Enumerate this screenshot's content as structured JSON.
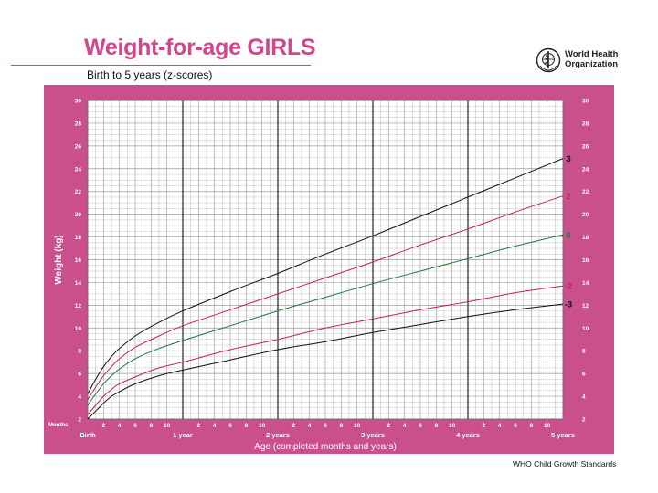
{
  "page": {
    "title": "Weight-for-age GIRLS",
    "subtitle": "Birth to 5 years (z-scores)",
    "organization_line1": "World Health",
    "organization_line2": "Organization",
    "footer": "WHO Child Growth Standards",
    "icons": {
      "logo": "who-emblem-icon"
    }
  },
  "colors": {
    "frame": "#c9508d",
    "title": "#d2468d",
    "z_sd3": "#111111",
    "z_sd2": "#c0264a",
    "z_0": "#1e7a3a",
    "grid": "#9a9a9a"
  },
  "chart_data": {
    "type": "line",
    "ylabel": "Weight (kg)",
    "xlabel": "Age (completed months and years)",
    "months_label": "Months",
    "xlim": [
      0,
      60
    ],
    "ylim": [
      2,
      30
    ],
    "grid": true,
    "y_ticks": [
      2,
      4,
      6,
      8,
      10,
      12,
      14,
      16,
      18,
      20,
      22,
      24,
      26,
      28,
      30
    ],
    "x_tick_labels": [
      {
        "month": 0,
        "label": "Birth"
      },
      {
        "month": 2,
        "label": "2"
      },
      {
        "month": 4,
        "label": "4"
      },
      {
        "month": 6,
        "label": "6"
      },
      {
        "month": 8,
        "label": "8"
      },
      {
        "month": 10,
        "label": "10"
      },
      {
        "month": 12,
        "label": "1 year"
      },
      {
        "month": 14,
        "label": "2"
      },
      {
        "month": 16,
        "label": "4"
      },
      {
        "month": 18,
        "label": "6"
      },
      {
        "month": 20,
        "label": "8"
      },
      {
        "month": 22,
        "label": "10"
      },
      {
        "month": 24,
        "label": "2 years"
      },
      {
        "month": 26,
        "label": "2"
      },
      {
        "month": 28,
        "label": "4"
      },
      {
        "month": 30,
        "label": "6"
      },
      {
        "month": 32,
        "label": "8"
      },
      {
        "month": 34,
        "label": "10"
      },
      {
        "month": 36,
        "label": "3 years"
      },
      {
        "month": 38,
        "label": "2"
      },
      {
        "month": 40,
        "label": "4"
      },
      {
        "month": 42,
        "label": "6"
      },
      {
        "month": 44,
        "label": "8"
      },
      {
        "month": 46,
        "label": "10"
      },
      {
        "month": 48,
        "label": "4 years"
      },
      {
        "month": 50,
        "label": "2"
      },
      {
        "month": 52,
        "label": "4"
      },
      {
        "month": 54,
        "label": "6"
      },
      {
        "month": 56,
        "label": "8"
      },
      {
        "month": 58,
        "label": "10"
      },
      {
        "month": 60,
        "label": "5 years"
      }
    ],
    "year_lines": [
      12,
      24,
      36,
      48
    ],
    "x": [
      0,
      1,
      2,
      3,
      4,
      6,
      9,
      12,
      18,
      24,
      30,
      36,
      42,
      48,
      54,
      60
    ],
    "series": [
      {
        "label": "3",
        "color": "#111111",
        "values": [
          4.2,
          5.5,
          6.6,
          7.5,
          8.2,
          9.3,
          10.5,
          11.5,
          13.2,
          14.8,
          16.5,
          18.1,
          19.8,
          21.5,
          23.2,
          24.9
        ]
      },
      {
        "label": "2",
        "color": "#c0264a",
        "values": [
          3.7,
          4.8,
          5.8,
          6.6,
          7.3,
          8.3,
          9.3,
          10.2,
          11.6,
          13.0,
          14.4,
          15.8,
          17.3,
          18.7,
          20.2,
          21.6
        ]
      },
      {
        "label": "0",
        "color": "#1e7a3a",
        "values": [
          3.2,
          4.2,
          5.1,
          5.8,
          6.4,
          7.3,
          8.2,
          8.9,
          10.2,
          11.5,
          12.7,
          13.9,
          15.0,
          16.1,
          17.2,
          18.2
        ]
      },
      {
        "label": "-2",
        "color": "#c0264a",
        "values": [
          2.4,
          3.2,
          4.0,
          4.6,
          5.1,
          5.7,
          6.5,
          7.0,
          8.1,
          9.0,
          10.0,
          10.8,
          11.6,
          12.3,
          13.1,
          13.7
        ]
      },
      {
        "label": "-3",
        "color": "#111111",
        "values": [
          2.0,
          2.7,
          3.4,
          4.0,
          4.4,
          5.1,
          5.8,
          6.3,
          7.2,
          8.1,
          8.8,
          9.6,
          10.3,
          11.0,
          11.6,
          12.1
        ]
      }
    ]
  }
}
